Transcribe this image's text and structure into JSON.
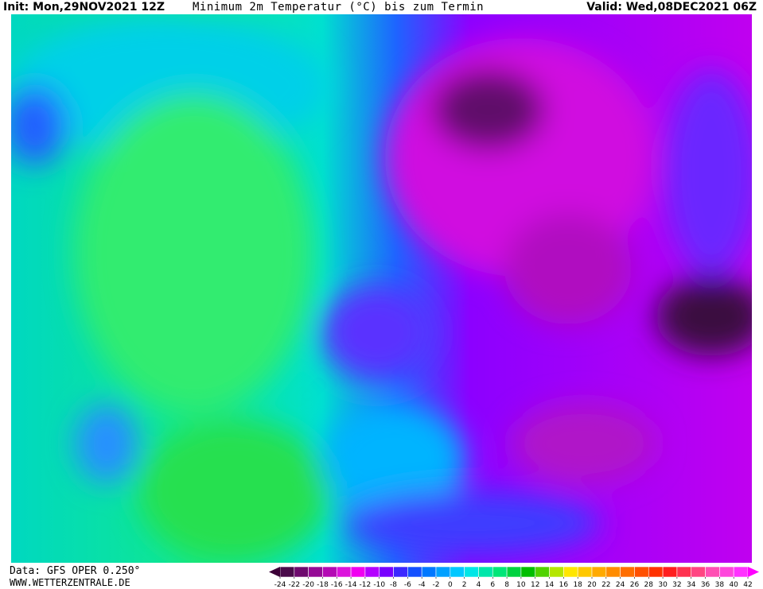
{
  "header": {
    "init": "Init: Mon,29NOV2021 12Z",
    "title": "Minimum 2m Temperatur (°C) bis zum Termin",
    "valid": "Valid: Wed,08DEC2021 06Z"
  },
  "footer": {
    "data": "Data: GFS OPER 0.250°",
    "site": "WWW.WETTERZENTRALE.DE"
  },
  "colorbar": {
    "ticks": [
      -24,
      -22,
      -20,
      -18,
      -16,
      -14,
      -12,
      -10,
      -8,
      -6,
      -4,
      -2,
      0,
      2,
      4,
      6,
      8,
      10,
      12,
      14,
      16,
      18,
      20,
      22,
      24,
      26,
      28,
      30,
      32,
      34,
      36,
      38,
      40,
      42
    ],
    "colors": [
      "#4a0a4a",
      "#6e0a6e",
      "#960a96",
      "#b40ab4",
      "#dc14dc",
      "#f000f0",
      "#b400ff",
      "#7800ff",
      "#3c28ff",
      "#1450ff",
      "#0078ff",
      "#00a0ff",
      "#00c8ff",
      "#00e6e6",
      "#00e6aa",
      "#00e678",
      "#00d240",
      "#00be00",
      "#50d200",
      "#b4e600",
      "#ffe600",
      "#ffc800",
      "#ffaa00",
      "#ff8c00",
      "#ff6e00",
      "#ff5000",
      "#ff3200",
      "#ff1e1e",
      "#ff3250",
      "#ff4682",
      "#ff50b4",
      "#ff46dc",
      "#ff32ff"
    ],
    "low_color": "#3c0037",
    "high_color": "#ff00ff"
  }
}
